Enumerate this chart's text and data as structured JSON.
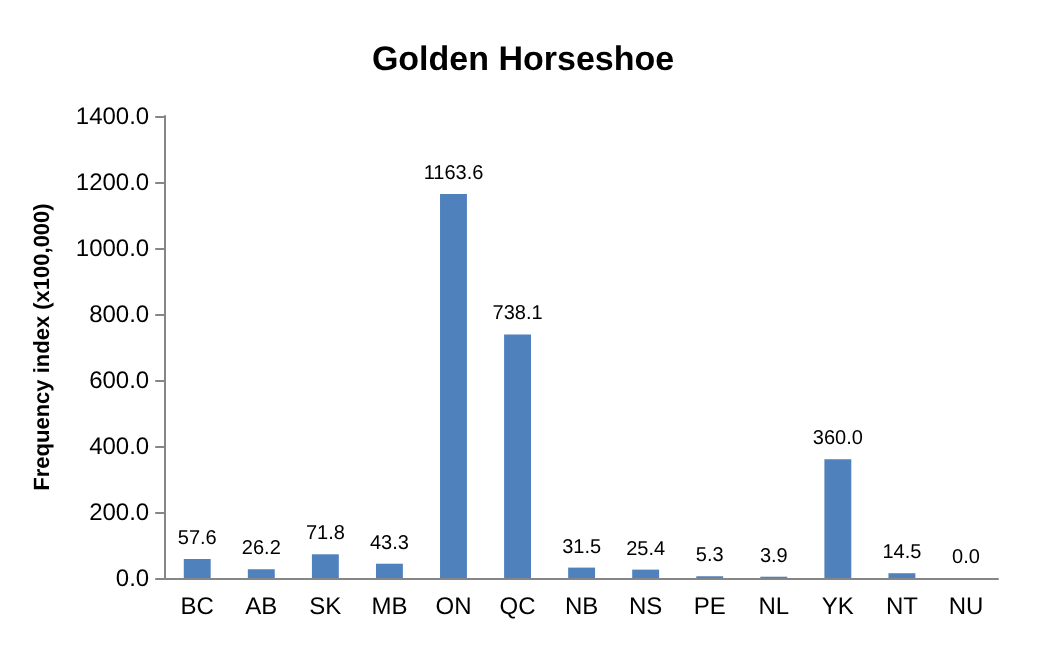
{
  "chart_data": {
    "type": "bar",
    "title": "Golden Horseshoe",
    "ylabel": "Frequency index (x100,000)",
    "categories": [
      "BC",
      "AB",
      "SK",
      "MB",
      "ON",
      "QC",
      "NB",
      "NS",
      "PE",
      "NL",
      "YK",
      "NT",
      "NU"
    ],
    "values": [
      57.6,
      26.2,
      71.8,
      43.3,
      1163.6,
      738.1,
      31.5,
      25.4,
      5.3,
      3.9,
      360.0,
      14.5,
      0
    ],
    "value_labels": [
      "57.6",
      "26.2",
      "71.8",
      "43.3",
      "1163.6",
      "738.1",
      "31.5",
      "25.4",
      "5.3",
      "3.9",
      "360.0",
      "14.5",
      "0.0"
    ],
    "color": "#4f81bd",
    "ylim": [
      0,
      1400
    ],
    "yticks": [
      {
        "value": 0,
        "label": "0.0"
      },
      {
        "value": 200,
        "label": "200.0"
      },
      {
        "value": 400,
        "label": "400.0"
      },
      {
        "value": 600,
        "label": "600.0"
      },
      {
        "value": 800,
        "label": "800.0"
      },
      {
        "value": 1000,
        "label": "1000.0"
      },
      {
        "value": 1200,
        "label": "1200.0"
      },
      {
        "value": 1400,
        "label": "1400.0"
      }
    ],
    "grid": false
  }
}
